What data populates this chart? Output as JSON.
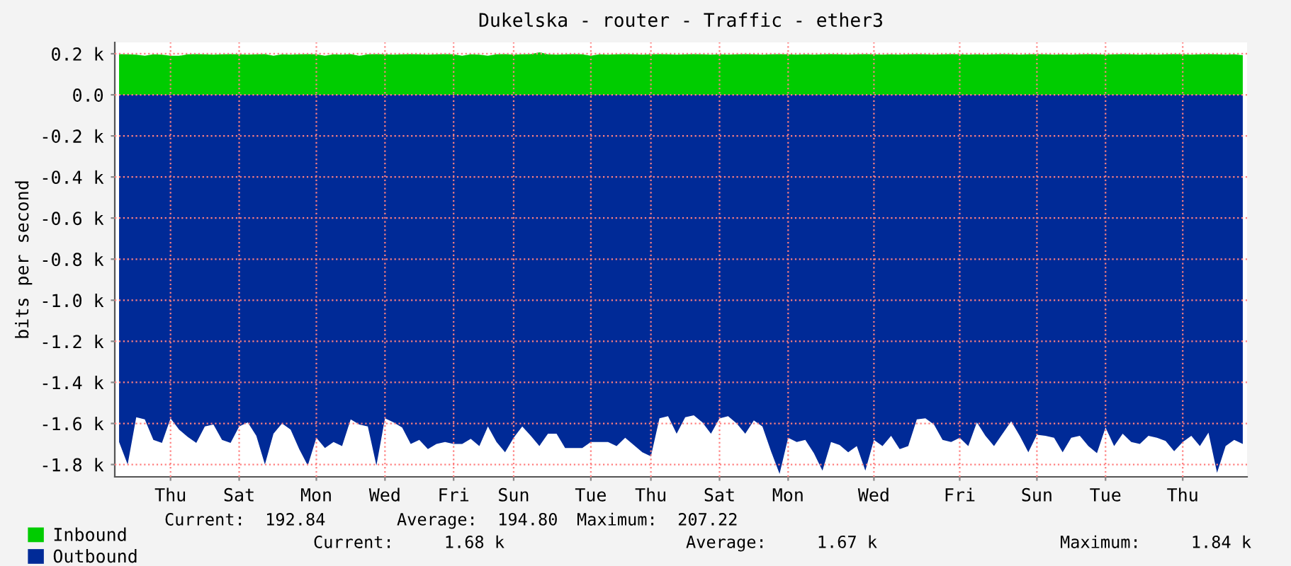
{
  "chart_data": {
    "type": "area",
    "title": "Dukelska - router - Traffic - ether3",
    "ylabel": "bits per second",
    "categories": [
      null,
      null,
      null,
      null,
      null,
      null,
      "Thu",
      null,
      null,
      null,
      null,
      null,
      null,
      null,
      "Sat",
      null,
      null,
      null,
      null,
      null,
      null,
      null,
      null,
      "Mon",
      null,
      null,
      null,
      null,
      null,
      null,
      null,
      "Wed",
      null,
      null,
      null,
      null,
      null,
      null,
      null,
      "Fri",
      null,
      null,
      null,
      null,
      null,
      null,
      "Sun",
      null,
      null,
      null,
      null,
      null,
      null,
      null,
      null,
      "Tue",
      null,
      null,
      null,
      null,
      null,
      null,
      "Thu",
      null,
      null,
      null,
      null,
      null,
      null,
      null,
      "Sat",
      null,
      null,
      null,
      null,
      null,
      null,
      null,
      "Mon",
      null,
      null,
      null,
      null,
      null,
      null,
      null,
      null,
      null,
      "Wed",
      null,
      null,
      null,
      null,
      null,
      null,
      null,
      null,
      null,
      "Fri",
      null,
      null,
      null,
      null,
      null,
      null,
      null,
      null,
      "Sun",
      null,
      null,
      null,
      null,
      null,
      null,
      null,
      "Tue",
      null,
      null,
      null,
      null,
      null,
      null,
      null,
      null,
      "Thu",
      null,
      null,
      null,
      null,
      null,
      null,
      null
    ],
    "ylim": [
      -1860,
      255
    ],
    "yticks": [
      {
        "value": 200,
        "label": "0.2 k"
      },
      {
        "value": 0,
        "label": "0.0"
      },
      {
        "value": -200,
        "label": "-0.2 k"
      },
      {
        "value": -400,
        "label": "-0.4 k"
      },
      {
        "value": -600,
        "label": "-0.6 k"
      },
      {
        "value": -800,
        "label": "-0.8 k"
      },
      {
        "value": -1000,
        "label": "-1.0 k"
      },
      {
        "value": -1200,
        "label": "-1.2 k"
      },
      {
        "value": -1400,
        "label": "-1.4 k"
      },
      {
        "value": -1600,
        "label": "-1.6 k"
      },
      {
        "value": -1800,
        "label": "-1.8 k"
      }
    ],
    "grid": true,
    "legend": "bottom",
    "series": [
      {
        "name": "Inbound",
        "color": "#00cc00",
        "values": [
          198,
          197,
          196,
          190,
          197,
          196,
          190,
          190,
          197,
          198,
          197,
          196,
          197,
          198,
          197,
          196,
          197,
          198,
          190,
          197,
          196,
          197,
          198,
          197,
          190,
          197,
          196,
          198,
          190,
          197,
          198,
          197,
          196,
          197,
          198,
          197,
          196,
          197,
          198,
          197,
          190,
          197,
          196,
          190,
          197,
          198,
          196,
          197,
          198,
          207,
          197,
          196,
          197,
          198,
          197,
          190,
          197,
          196,
          197,
          198,
          197,
          196,
          197,
          198,
          197,
          196,
          197,
          198,
          197,
          196,
          197,
          196,
          197,
          198,
          197,
          196,
          197,
          198,
          197,
          196,
          197,
          196,
          197,
          198,
          197,
          196,
          197,
          198,
          197,
          196,
          197,
          196,
          197,
          198,
          197,
          196,
          197,
          198,
          197,
          196,
          197,
          196,
          197,
          198,
          197,
          196,
          197,
          198,
          197,
          196,
          197,
          196,
          197,
          198,
          197,
          196,
          197,
          198,
          197,
          196,
          197,
          196,
          197,
          198,
          197,
          196,
          197,
          198,
          197,
          196,
          197,
          193
        ]
      },
      {
        "name": "Outbound",
        "color": "#002a97",
        "values": [
          -1690,
          -1800,
          -1570,
          -1580,
          -1680,
          -1695,
          -1575,
          -1630,
          -1665,
          -1695,
          -1615,
          -1605,
          -1680,
          -1695,
          -1615,
          -1595,
          -1660,
          -1800,
          -1650,
          -1600,
          -1630,
          -1725,
          -1805,
          -1670,
          -1720,
          -1690,
          -1710,
          -1580,
          -1605,
          -1615,
          -1805,
          -1575,
          -1595,
          -1620,
          -1700,
          -1680,
          -1725,
          -1700,
          -1690,
          -1700,
          -1700,
          -1675,
          -1710,
          -1615,
          -1690,
          -1740,
          -1670,
          -1615,
          -1660,
          -1710,
          -1650,
          -1650,
          -1720,
          -1720,
          -1720,
          -1690,
          -1690,
          -1690,
          -1710,
          -1670,
          -1705,
          -1740,
          -1760,
          -1575,
          -1565,
          -1650,
          -1570,
          -1560,
          -1595,
          -1650,
          -1575,
          -1565,
          -1600,
          -1650,
          -1585,
          -1615,
          -1735,
          -1845,
          -1670,
          -1690,
          -1680,
          -1745,
          -1830,
          -1690,
          -1705,
          -1740,
          -1710,
          -1830,
          -1680,
          -1710,
          -1660,
          -1725,
          -1710,
          -1580,
          -1575,
          -1605,
          -1680,
          -1690,
          -1670,
          -1710,
          -1595,
          -1660,
          -1710,
          -1650,
          -1590,
          -1660,
          -1740,
          -1655,
          -1660,
          -1670,
          -1740,
          -1670,
          -1660,
          -1710,
          -1745,
          -1620,
          -1710,
          -1650,
          -1690,
          -1700,
          -1660,
          -1670,
          -1685,
          -1735,
          -1690,
          -1660,
          -1710,
          -1645,
          -1840,
          -1710,
          -1680,
          -1700
        ]
      }
    ],
    "annotations": [
      "Current:  192.84",
      "Average:  194.80",
      "Maximum:  207.22",
      "Current:     1.68 k",
      "Average:     1.67 k",
      "Maximum:     1.84 k"
    ]
  }
}
